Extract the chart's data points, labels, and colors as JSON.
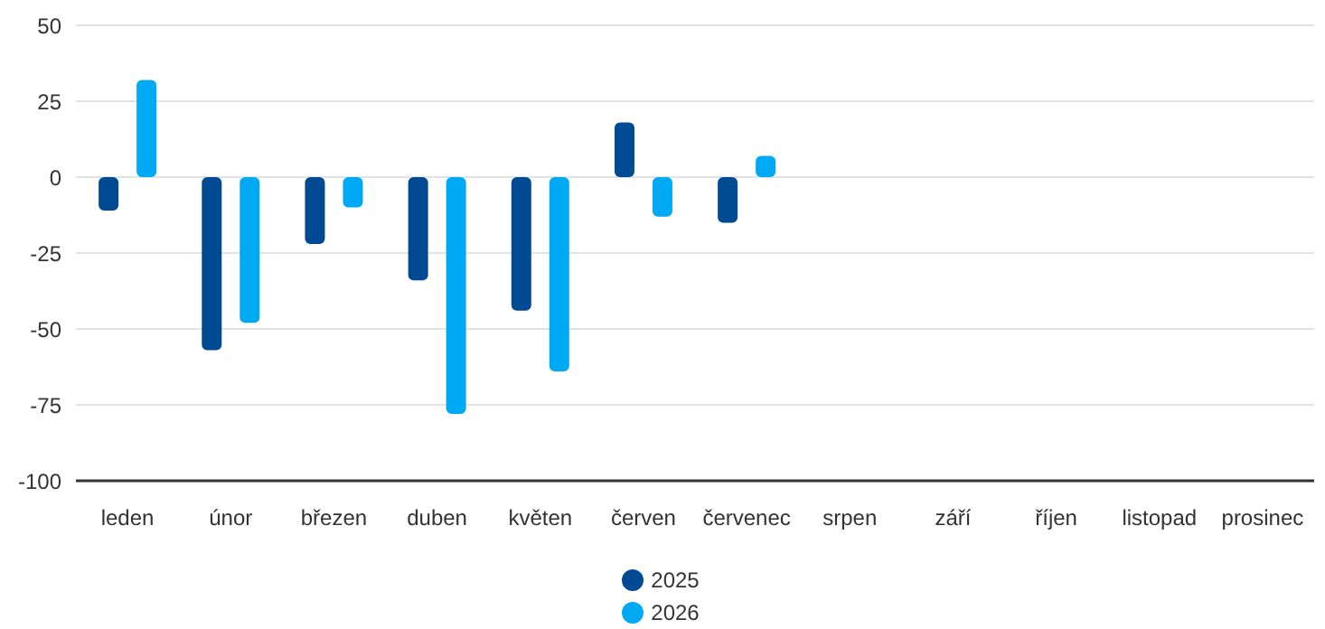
{
  "chart_data": {
    "type": "bar",
    "categories": [
      "leden",
      "únor",
      "březen",
      "duben",
      "květen",
      "červen",
      "červenec",
      "srpen",
      "září",
      "říjen",
      "listopad",
      "prosinec"
    ],
    "series": [
      {
        "name": "2025",
        "color": "#004a93",
        "values": [
          -11,
          -57,
          -22,
          -34,
          -44,
          18,
          -15,
          null,
          null,
          null,
          null,
          null
        ]
      },
      {
        "name": "2026",
        "color": "#00a9f4",
        "values": [
          32,
          -48,
          -10,
          -78,
          -64,
          -13,
          7,
          null,
          null,
          null,
          null,
          null
        ]
      }
    ],
    "ylim": [
      -100,
      50
    ],
    "yticks": [
      -100,
      -75,
      -50,
      -25,
      0,
      25,
      50
    ],
    "grid": "y",
    "legend": "bottom"
  }
}
